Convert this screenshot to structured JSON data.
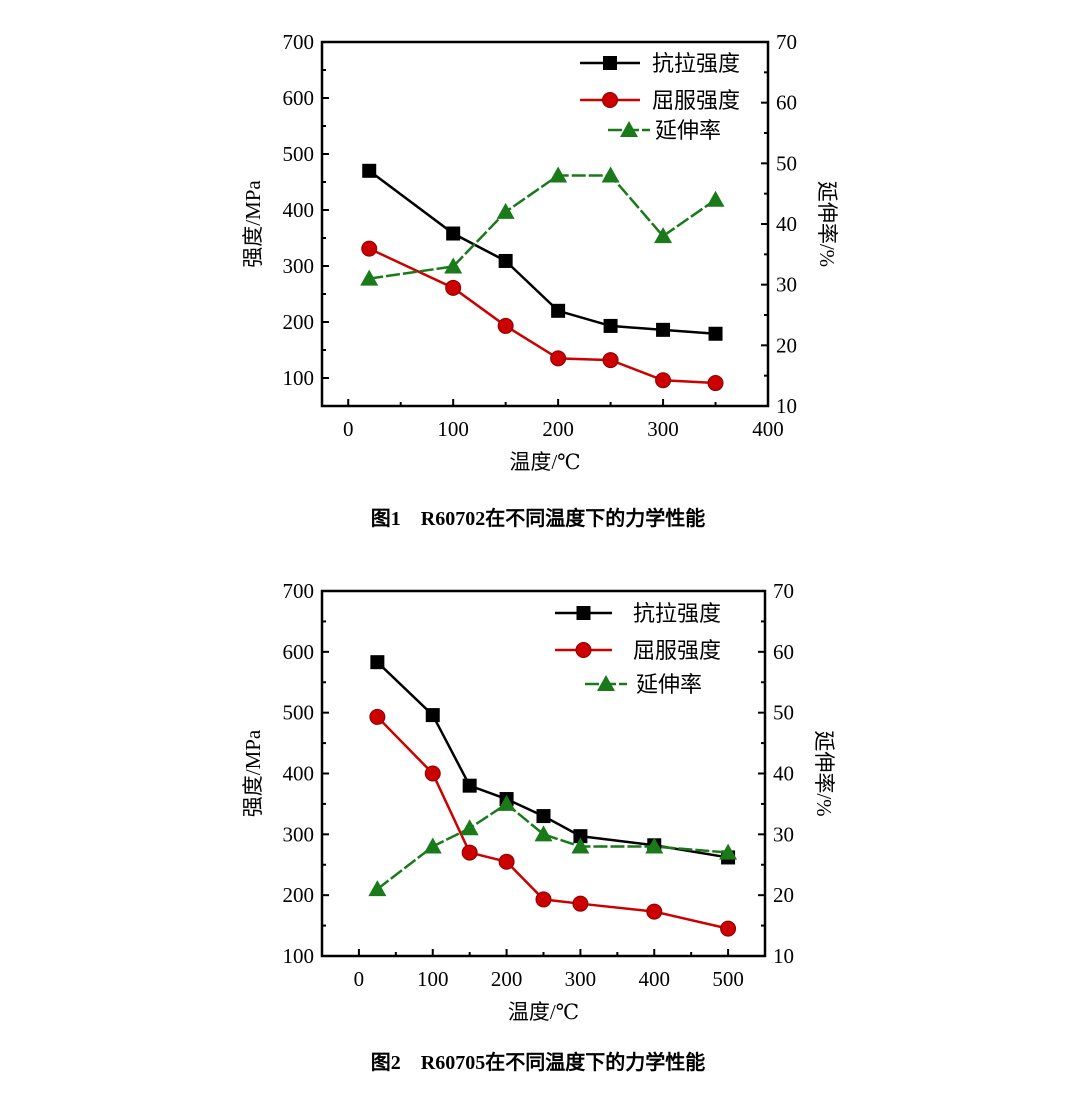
{
  "chart_data": [
    {
      "type": "line",
      "caption": "图1　R60702在不同温度下的力学性能",
      "xlabel": "温度/℃",
      "ylabel": "强度/MPa",
      "y2label": "延伸率/%",
      "xlim": [
        -25,
        400
      ],
      "ylim": [
        50,
        700
      ],
      "y2lim": [
        10,
        70
      ],
      "xticks": [
        0,
        100,
        200,
        300,
        400
      ],
      "yticks": [
        100,
        200,
        300,
        400,
        500,
        600,
        700
      ],
      "y2ticks": [
        10,
        20,
        30,
        40,
        50,
        60,
        70
      ],
      "legend_position": "top-right",
      "grid": false,
      "x": [
        20,
        100,
        150,
        200,
        250,
        300,
        350
      ],
      "series": [
        {
          "name": "抗拉强度",
          "axis": "left",
          "marker": "square",
          "color": "#000000",
          "dashed": false,
          "values": [
            470,
            358,
            309,
            220,
            193,
            186,
            179
          ]
        },
        {
          "name": "屈服强度",
          "axis": "left",
          "marker": "circle",
          "color": "#cc0000",
          "dashed": false,
          "values": [
            331,
            261,
            193,
            135,
            132,
            96,
            91
          ]
        },
        {
          "name": "延伸率",
          "axis": "right",
          "marker": "triangle",
          "color": "#1a7a1a",
          "dashed": true,
          "values": [
            31,
            33,
            42,
            48,
            48,
            38,
            44
          ]
        }
      ]
    },
    {
      "type": "line",
      "caption": "图2　R60705在不同温度下的力学性能",
      "xlabel": "温度/℃",
      "ylabel": "强度/MPa",
      "y2label": "延伸率/%",
      "xlim": [
        -50,
        550
      ],
      "ylim": [
        100,
        700
      ],
      "y2lim": [
        10,
        70
      ],
      "xticks": [
        0,
        100,
        200,
        300,
        400,
        500
      ],
      "yticks": [
        100,
        200,
        300,
        400,
        500,
        600,
        700
      ],
      "y2ticks": [
        10,
        20,
        30,
        40,
        50,
        60,
        70
      ],
      "legend_position": "top-right",
      "grid": false,
      "x": [
        25,
        100,
        150,
        200,
        250,
        300,
        400,
        500
      ],
      "series": [
        {
          "name": "抗拉强度",
          "axis": "left",
          "marker": "square",
          "color": "#000000",
          "dashed": false,
          "values": [
            583,
            496,
            380,
            358,
            330,
            297,
            282,
            262
          ]
        },
        {
          "name": "屈服强度",
          "axis": "left",
          "marker": "circle",
          "color": "#cc0000",
          "dashed": false,
          "values": [
            493,
            400,
            270,
            255,
            193,
            186,
            173,
            145
          ]
        },
        {
          "name": "延伸率",
          "axis": "right",
          "marker": "triangle",
          "color": "#1a7a1a",
          "dashed": true,
          "values": [
            21,
            28,
            31,
            35,
            30,
            28,
            28,
            27
          ]
        }
      ]
    }
  ]
}
